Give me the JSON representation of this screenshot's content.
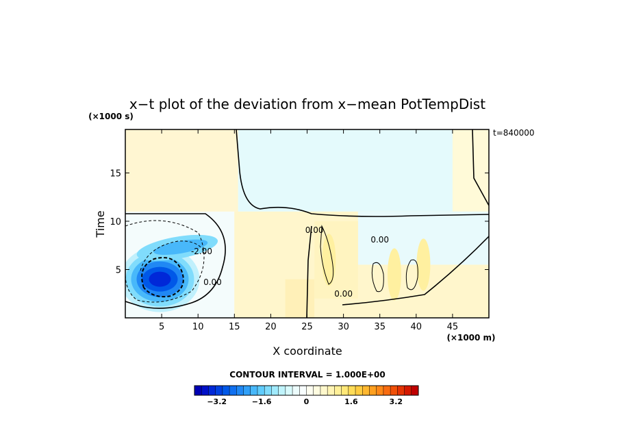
{
  "chart_data": {
    "type": "heatmap",
    "title": "x−t plot of the deviation from x−mean PotTempDist",
    "xlabel": "X coordinate",
    "ylabel": "Time",
    "x_unit": "(×1000 m)",
    "y_unit": "(×1000 s)",
    "annotation": "t=840000",
    "x_range": [
      0,
      50
    ],
    "y_range": [
      0,
      19.5
    ],
    "x_ticks": [
      5,
      10,
      15,
      20,
      25,
      30,
      35,
      40,
      45
    ],
    "y_ticks": [
      5,
      10,
      15
    ],
    "contour_interval_label": "CONTOUR INTERVAL = 1.000E+00",
    "contour_labels": [
      {
        "text": "0.00",
        "x": 12,
        "y": 3.4
      },
      {
        "text": "-2.00",
        "x": 10.5,
        "y": 6.6
      },
      {
        "text": "0.00",
        "x": 26,
        "y": 8.8
      },
      {
        "text": "0.00",
        "x": 35,
        "y": 7.8
      },
      {
        "text": "0.00",
        "x": 30,
        "y": 2.2
      }
    ],
    "features": [
      {
        "kind": "min",
        "x": 4,
        "y": 4.0,
        "value": -3.0
      },
      {
        "kind": "min",
        "x": 9,
        "y": 7.5,
        "value": -1.5
      },
      {
        "kind": "max",
        "x": 28,
        "y": 6.0,
        "value": 0.6
      },
      {
        "kind": "max",
        "x": 37,
        "y": 4.5,
        "value": 0.5
      },
      {
        "kind": "max",
        "x": 41,
        "y": 5.5,
        "value": 0.5
      }
    ],
    "colorbar": {
      "tick_labels": [
        "−3.2",
        "−1.6",
        "0",
        "1.6",
        "3.2"
      ],
      "tick_values": [
        -3.2,
        -1.6,
        0,
        1.6,
        3.2
      ],
      "range": [
        -4.0,
        4.0
      ],
      "colors": [
        "#0000b4",
        "#0010c8",
        "#0028d8",
        "#0040e0",
        "#0058e8",
        "#1070f0",
        "#2088f4",
        "#30a0f8",
        "#48b8fa",
        "#60ccfc",
        "#80dcfc",
        "#a0eafc",
        "#c0f4fc",
        "#d8fafc",
        "#ecfcfc",
        "#f8fefe",
        "#fefef0",
        "#fffce0",
        "#fff8cc",
        "#fff4b4",
        "#fff098",
        "#ffe878",
        "#ffdc58",
        "#ffcc40",
        "#ffb830",
        "#ffa020",
        "#ff8818",
        "#f86c10",
        "#f05008",
        "#e43404",
        "#d41800",
        "#c00000"
      ]
    }
  }
}
